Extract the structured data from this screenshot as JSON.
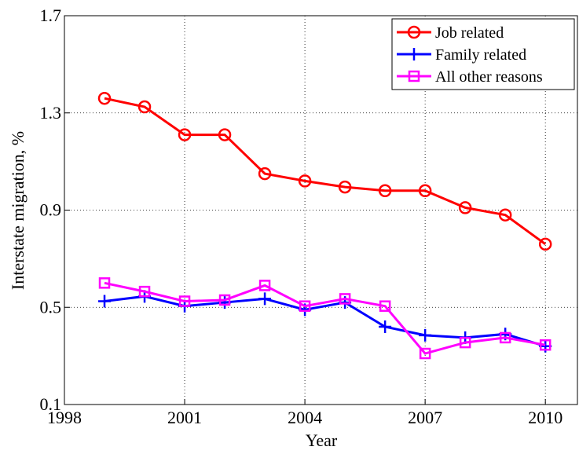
{
  "chart_data": {
    "type": "line",
    "x_label": "Year",
    "y_label": "Interstate migration, %",
    "x": [
      1999,
      2000,
      2001,
      2002,
      2003,
      2004,
      2005,
      2006,
      2007,
      2008,
      2009,
      2010
    ],
    "series": [
      {
        "name": "Job related",
        "color": "#ff0000",
        "marker": "circle",
        "values": [
          1.36,
          1.325,
          1.21,
          1.21,
          1.05,
          1.02,
          0.995,
          0.98,
          0.98,
          0.91,
          0.88,
          0.76
        ]
      },
      {
        "name": "Family related",
        "color": "#0000ff",
        "marker": "plus",
        "values": [
          0.525,
          0.545,
          0.505,
          0.52,
          0.535,
          0.49,
          0.52,
          0.42,
          0.385,
          0.375,
          0.39,
          0.34
        ]
      },
      {
        "name": "All other reasons",
        "color": "#ff00ff",
        "marker": "square",
        "values": [
          0.6,
          0.565,
          0.525,
          0.53,
          0.59,
          0.505,
          0.535,
          0.505,
          0.31,
          0.355,
          0.375,
          0.345
        ]
      }
    ],
    "xlim": [
      1998,
      2010.8
    ],
    "xticks": [
      1998,
      2001,
      2004,
      2007,
      2010
    ],
    "ylim": [
      0.1,
      1.7
    ],
    "yticks": [
      0.1,
      0.5,
      0.9,
      1.3,
      1.7
    ],
    "grid": true,
    "legend": "upper-right"
  }
}
